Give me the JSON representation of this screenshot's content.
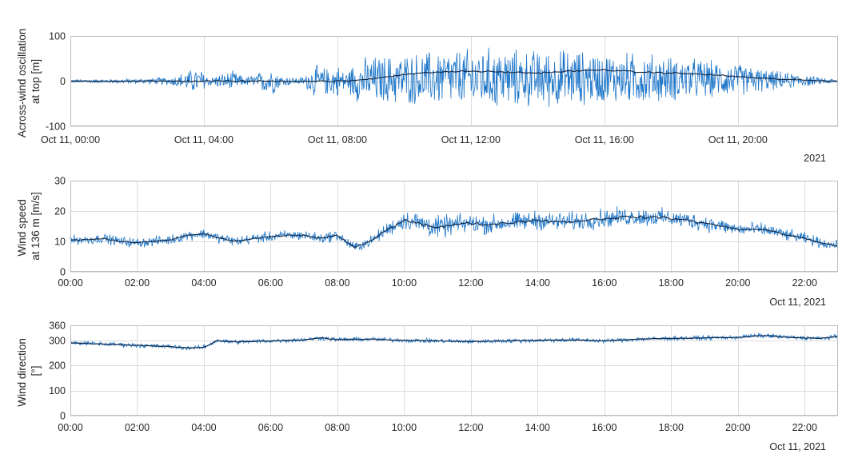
{
  "colors": {
    "signal": "#1f77c9",
    "mean": "#10233f",
    "grid": "#dcdcdc",
    "frame": "#bdbdbd",
    "text": "#262626"
  },
  "chart_data": [
    {
      "type": "line",
      "ylabel": [
        "Across-wind oscillation",
        "at top [m]"
      ],
      "ylim": [
        -100,
        100
      ],
      "yticks": [
        -100,
        0,
        100
      ],
      "xlim": [
        0,
        23
      ],
      "xticks": [
        0,
        4,
        8,
        12,
        16,
        20
      ],
      "xtick_labels": [
        "Oct 11, 00:00",
        "Oct 11, 04:00",
        "Oct 11, 08:00",
        "Oct 11, 12:00",
        "Oct 11, 16:00",
        "Oct 11, 20:00"
      ],
      "x_secondary_label": "2021",
      "grid": true,
      "series": [
        {
          "role": "amplitude envelope (oscillation)",
          "x": [
            0,
            1,
            2,
            3,
            3.6,
            3.9,
            4.2,
            4.5,
            4.9,
            5.2,
            5.6,
            6.0,
            6.3,
            6.8,
            7.0,
            7.3,
            7.6,
            8.0,
            8.3,
            8.5,
            9,
            9.5,
            10,
            10.5,
            11,
            11.5,
            12,
            12.5,
            13,
            13.5,
            14,
            14.5,
            15,
            15.5,
            16,
            16.5,
            17,
            17.5,
            18,
            18.5,
            19,
            19.5,
            20,
            20.5,
            21,
            21.5,
            22,
            22.5,
            23
          ],
          "values": [
            4,
            5,
            6,
            10,
            28,
            30,
            12,
            18,
            25,
            10,
            18,
            38,
            14,
            8,
            12,
            40,
            33,
            40,
            22,
            50,
            60,
            60,
            62,
            65,
            70,
            70,
            72,
            75,
            75,
            70,
            70,
            70,
            72,
            65,
            62,
            62,
            65,
            60,
            55,
            52,
            48,
            42,
            40,
            33,
            25,
            20,
            15,
            8,
            4
          ]
        },
        {
          "role": "mean",
          "x": [
            0,
            8.3,
            9,
            10,
            11,
            12,
            13,
            14,
            15,
            16,
            17,
            18,
            19,
            20,
            21,
            22,
            23
          ],
          "values": [
            0,
            0,
            5,
            15,
            20,
            22,
            20,
            18,
            22,
            25,
            20,
            18,
            15,
            10,
            5,
            2,
            0
          ]
        }
      ]
    },
    {
      "type": "line",
      "ylabel": [
        "Wind speed",
        "at 136 m [m/s]"
      ],
      "ylim": [
        0,
        30
      ],
      "yticks": [
        0,
        10,
        20,
        30
      ],
      "xlim": [
        0,
        23
      ],
      "xticks": [
        0,
        2,
        4,
        6,
        8,
        10,
        12,
        14,
        16,
        18,
        20,
        22
      ],
      "xtick_labels": [
        "00:00",
        "02:00",
        "04:00",
        "06:00",
        "08:00",
        "10:00",
        "12:00",
        "14:00",
        "16:00",
        "18:00",
        "20:00",
        "22:00"
      ],
      "x_secondary_label": "Oct 11, 2021",
      "grid": true,
      "series": [
        {
          "role": "mean",
          "x": [
            0,
            0.5,
            1,
            1.5,
            2,
            2.5,
            3,
            3.5,
            4,
            4.5,
            5,
            5.5,
            6,
            6.5,
            7,
            7.5,
            8,
            8.5,
            9,
            9.5,
            10,
            10.5,
            11,
            11.5,
            12,
            12.5,
            13,
            13.5,
            14,
            14.5,
            15,
            15.5,
            16,
            16.5,
            17,
            17.5,
            18,
            18.5,
            19,
            19.5,
            20,
            20.5,
            21,
            21.5,
            22,
            22.5,
            23
          ],
          "values": [
            10.5,
            10.5,
            11,
            10,
            9.5,
            10,
            10.5,
            12,
            12.5,
            11,
            10,
            11,
            11.5,
            12,
            12,
            11,
            12,
            8,
            10,
            14,
            17,
            16,
            14.5,
            15.5,
            16,
            15.5,
            16,
            16.5,
            17,
            16.5,
            16.5,
            17,
            17.5,
            18,
            18,
            18,
            17.5,
            17,
            16,
            15,
            14,
            14,
            13.5,
            12,
            11,
            9.5,
            8.5
          ]
        },
        {
          "role": "turbulence amplitude",
          "x": [
            0,
            9,
            10,
            10.5,
            12,
            16,
            18,
            20,
            23
          ],
          "values": [
            1.6,
            1.8,
            3.2,
            4,
            3.2,
            3.2,
            3,
            2.4,
            1.6
          ]
        }
      ]
    },
    {
      "type": "line",
      "ylabel": [
        "Wind direction",
        "[°]"
      ],
      "ylim": [
        0,
        360
      ],
      "yticks": [
        0,
        100,
        200,
        300,
        360
      ],
      "xlim": [
        0,
        23
      ],
      "xticks": [
        0,
        2,
        4,
        6,
        8,
        10,
        12,
        14,
        16,
        18,
        20,
        22
      ],
      "xtick_labels": [
        "00:00",
        "02:00",
        "04:00",
        "06:00",
        "08:00",
        "10:00",
        "12:00",
        "14:00",
        "16:00",
        "18:00",
        "20:00",
        "22:00"
      ],
      "x_secondary_label": "Oct 11, 2021",
      "grid": true,
      "series": [
        {
          "role": "mean",
          "x": [
            0,
            0.5,
            1,
            1.5,
            2,
            2.5,
            3,
            3.5,
            4,
            4.2,
            4.4,
            4.6,
            5,
            6,
            7,
            7.5,
            8,
            9,
            10,
            11,
            12,
            13,
            14,
            15,
            16,
            17,
            18,
            19,
            20,
            20.5,
            21,
            21.5,
            22,
            22.5,
            23
          ],
          "values": [
            290,
            288,
            285,
            283,
            280,
            278,
            275,
            270,
            272,
            285,
            300,
            296,
            294,
            298,
            302,
            310,
            303,
            305,
            300,
            298,
            295,
            298,
            300,
            302,
            298,
            305,
            308,
            310,
            312,
            318,
            318,
            312,
            310,
            308,
            315
          ]
        },
        {
          "role": "turbulence amplitude",
          "x": [
            0,
            23
          ],
          "values": [
            9,
            9
          ]
        }
      ]
    }
  ]
}
